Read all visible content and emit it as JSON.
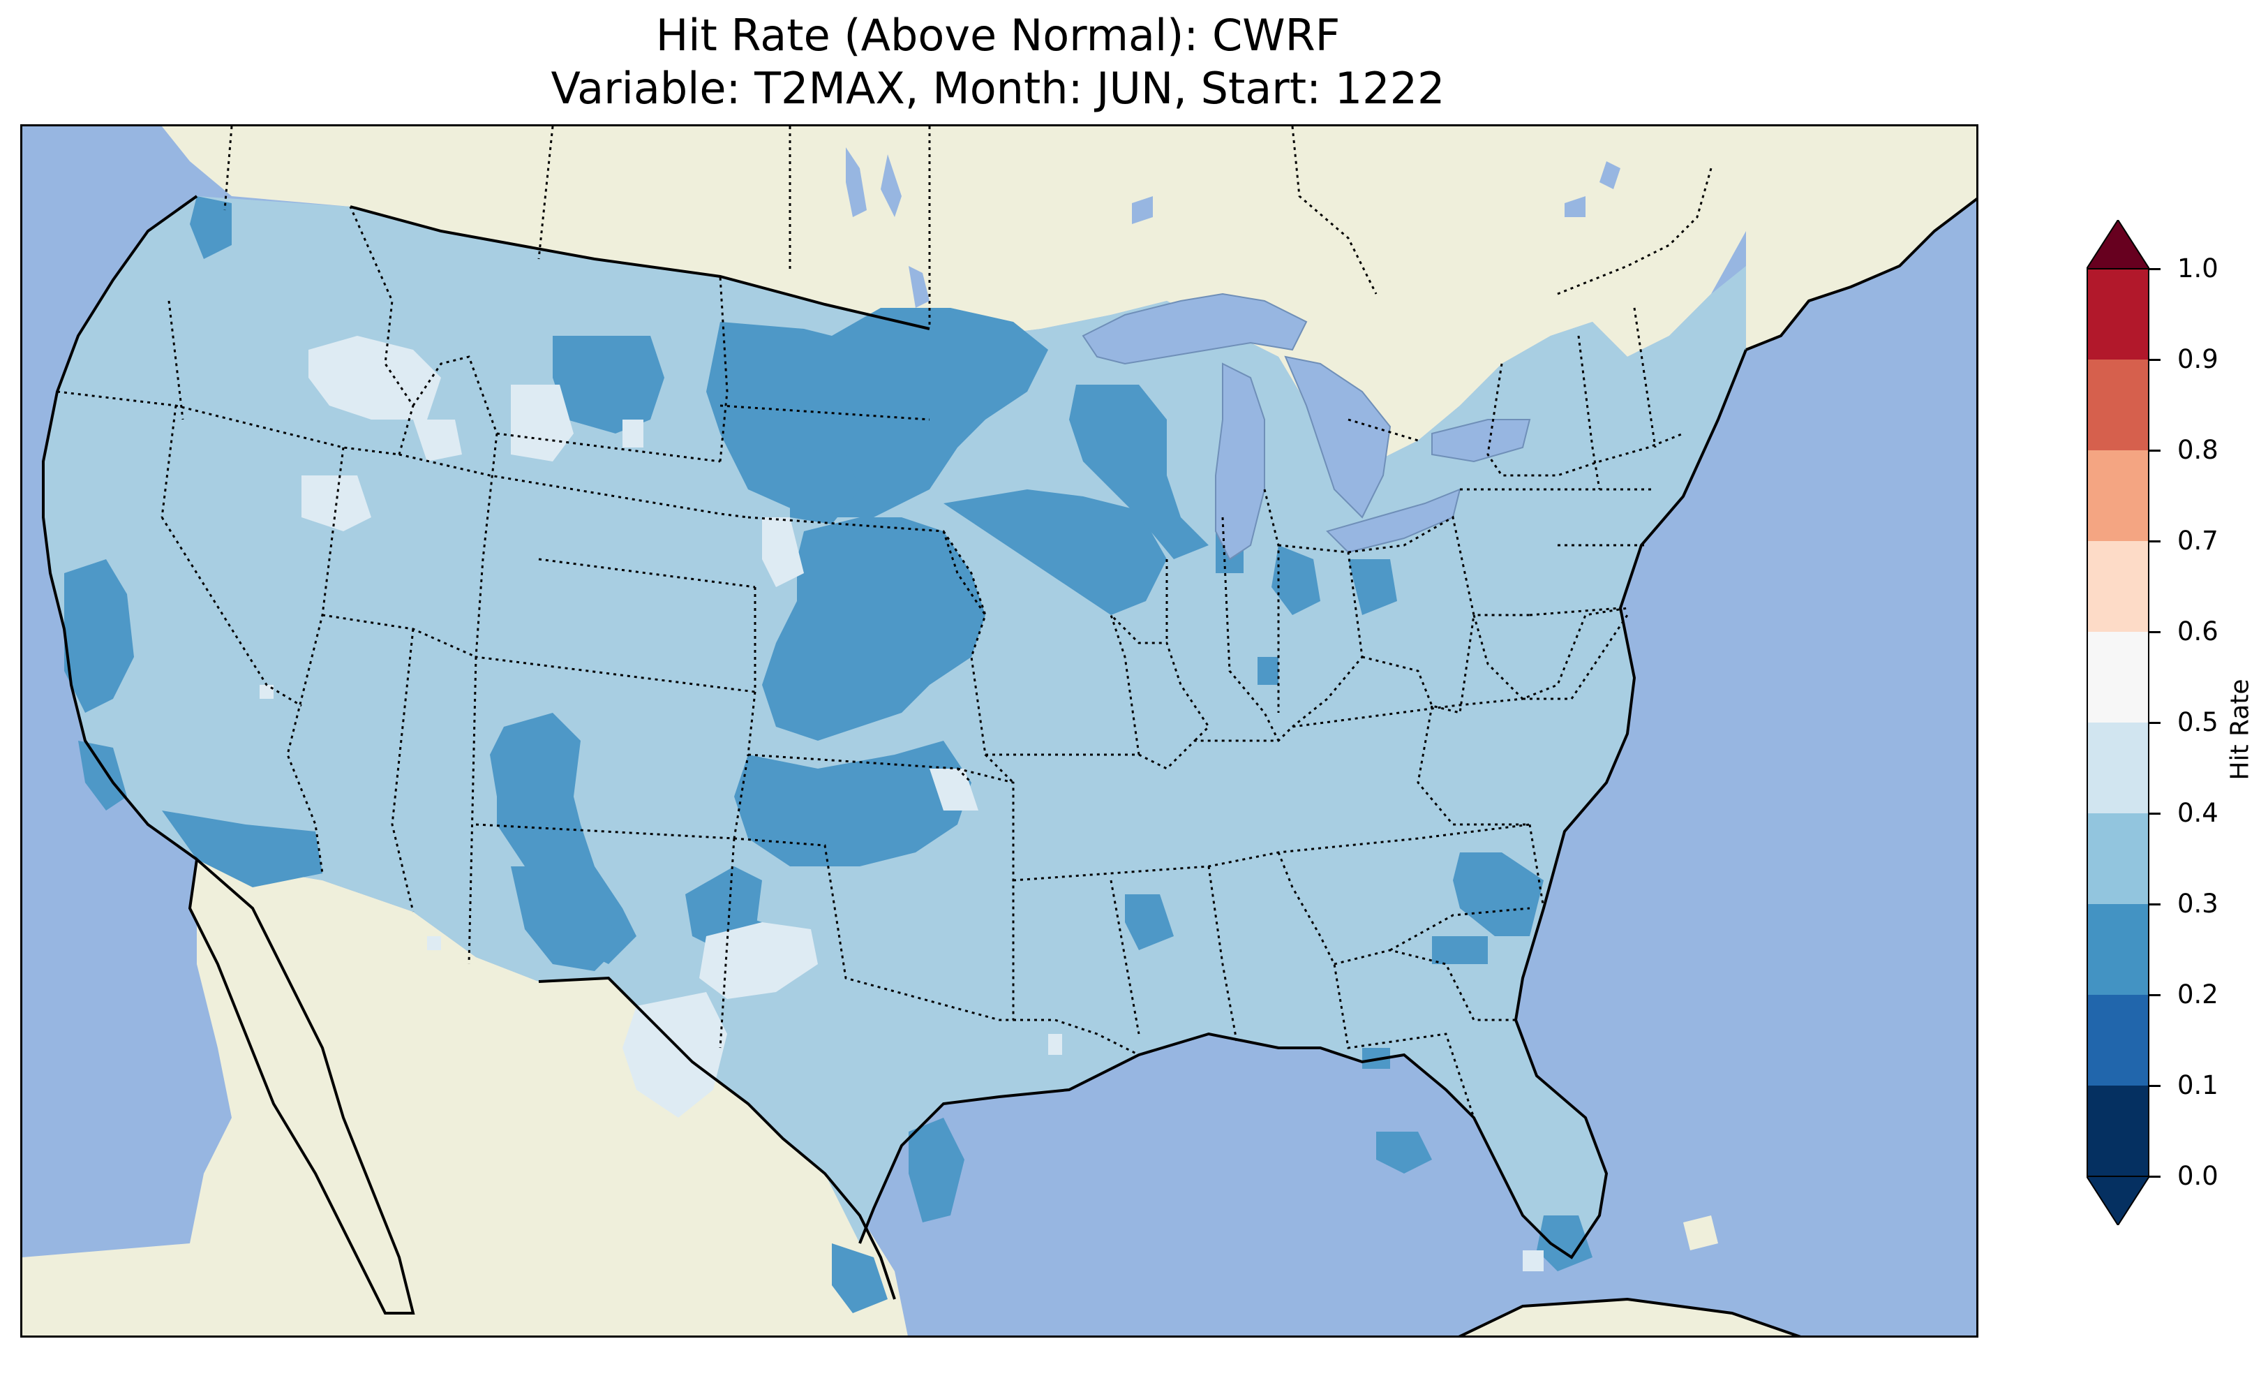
{
  "title": {
    "line1": "Hit Rate (Above Normal): CWRF",
    "line2": "Variable: T2MAX, Month: JUN, Start: 1222"
  },
  "colorbar": {
    "label": "Hit Rate",
    "ticks": [
      "0.0",
      "0.1",
      "0.2",
      "0.3",
      "0.4",
      "0.5",
      "0.6",
      "0.7",
      "0.8",
      "0.9",
      "1.0"
    ],
    "extend": "both",
    "bin_colors": [
      "#053061",
      "#2166ac",
      "#4393c3",
      "#92c5de",
      "#d1e5f0",
      "#f7f7f7",
      "#fddbc7",
      "#f4a582",
      "#d6604d",
      "#b2182b"
    ],
    "under_color": "#053061",
    "over_color": "#67001f"
  },
  "map": {
    "domain": "Contiguous United States",
    "ocean_color": "#97b6e1",
    "land_color": "#efefdb",
    "dominant_hit_rate_bin": "0.3-0.4",
    "lower_hit_rate_bin": "0.2-0.3",
    "higher_hit_rate_bin": "0.4-0.5",
    "bin_fills": {
      "0.2-0.3": "#4e98c7",
      "0.3-0.4": "#a8cee2",
      "0.4-0.5": "#deebf3"
    }
  }
}
